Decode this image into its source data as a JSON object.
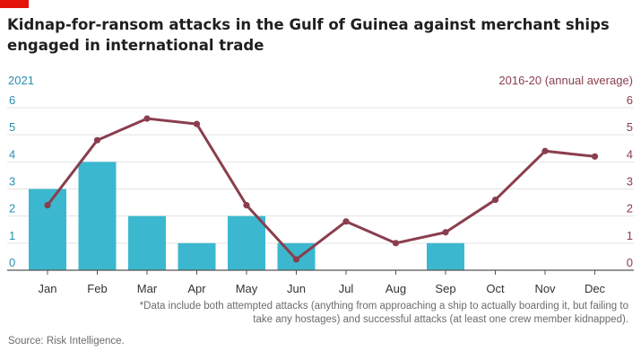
{
  "header": {
    "title": "Kidnap-for-ransom attacks in the Gulf of Guinea against merchant ships engaged in international trade"
  },
  "colors": {
    "accent_flag": "#e3120b",
    "bars_2021": "#3bb8cf",
    "line_2016_20": "#8a3e4d",
    "grid": "#e3e3e3",
    "left_axis_text": "#2a8fb0",
    "right_axis_text": "#8a3e4d"
  },
  "chart_data": {
    "type": "bar",
    "categories": [
      "Jan",
      "Feb",
      "Mar",
      "Apr",
      "May",
      "Jun",
      "Jul",
      "Aug",
      "Sep",
      "Oct",
      "Nov",
      "Dec"
    ],
    "series": [
      {
        "name": "2021",
        "type": "bar",
        "axis": "left",
        "values": [
          3,
          4,
          2,
          1,
          2,
          1,
          0,
          0,
          1,
          0,
          0,
          0
        ]
      },
      {
        "name": "2016-20 (annual average)",
        "type": "line",
        "axis": "right",
        "values": [
          2.4,
          4.8,
          5.6,
          5.4,
          2.4,
          0.4,
          1.8,
          1.0,
          1.4,
          2.6,
          4.4,
          4.2
        ]
      }
    ],
    "left_axis_label": "2021",
    "right_axis_label": "2016-20 (annual average)",
    "ylim": [
      0,
      6
    ],
    "yticks": [
      "0",
      "1",
      "2",
      "3",
      "4",
      "5",
      "6"
    ],
    "grid": true
  },
  "footer": {
    "note": "*Data include both attempted attacks (anything from approaching a ship to actually boarding it, but failing to take any hostages) and successful attacks (at least one crew member kidnapped).",
    "source": "Source: Risk Intelligence."
  }
}
